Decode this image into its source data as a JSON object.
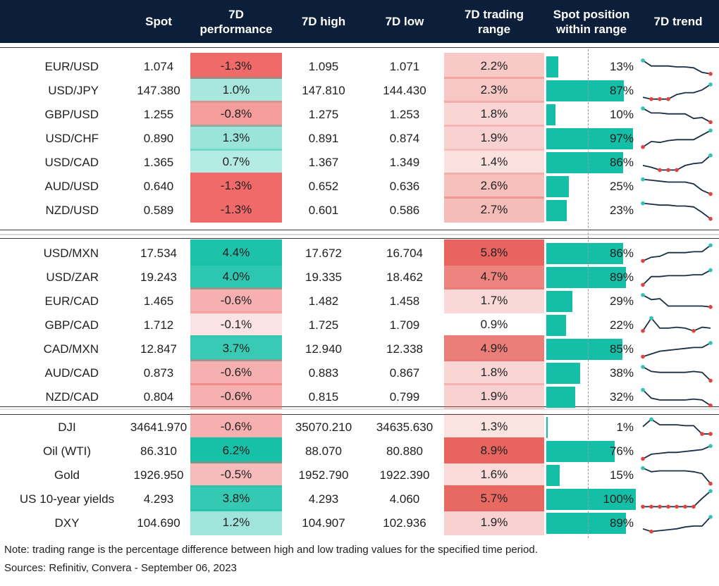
{
  "header": {
    "columns": [
      "",
      "Spot",
      "7D\nperformance",
      "7D high",
      "7D low",
      "7D trading\nrange",
      "Spot position\nwithin range",
      "7D trend"
    ]
  },
  "colors": {
    "header_bg": "#0b1f3a",
    "bar": "#15bfa7",
    "positive": "#17c1a8",
    "negative": "#f06a6a",
    "range": "#e8655f"
  },
  "chart_data": {
    "type": "table",
    "columns": [
      "Spot",
      "7D performance",
      "7D high",
      "7D low",
      "7D trading range",
      "Spot position within range",
      "7D trend"
    ],
    "sections": [
      {
        "rows": [
          {
            "name": "EUR/USD",
            "spot": "1.074",
            "perf": "-1.3%",
            "perf_value": -1.3,
            "high": "1.095",
            "low": "1.071",
            "range": "2.2%",
            "range_value": 2.2,
            "position": "13%",
            "position_value": 13,
            "trend": [
              0.85,
              0.55,
              0.55,
              0.55,
              0.5,
              0.5,
              0.45,
              0.2,
              0.12
            ]
          },
          {
            "name": "USD/JPY",
            "spot": "147.380",
            "perf": "1.0%",
            "perf_value": 1.0,
            "high": "147.810",
            "low": "144.430",
            "range": "2.3%",
            "range_value": 2.3,
            "position": "87%",
            "position_value": 87,
            "trend": [
              0.15,
              0.05,
              0.05,
              0.05,
              0.3,
              0.4,
              0.4,
              0.55,
              0.85
            ]
          },
          {
            "name": "GBP/USD",
            "spot": "1.255",
            "perf": "-0.8%",
            "perf_value": -0.8,
            "high": "1.275",
            "low": "1.253",
            "range": "1.8%",
            "range_value": 1.8,
            "position": "10%",
            "position_value": 10,
            "trend": [
              0.85,
              0.6,
              0.6,
              0.55,
              0.55,
              0.55,
              0.3,
              0.35,
              0.1
            ]
          },
          {
            "name": "USD/CHF",
            "spot": "0.890",
            "perf": "1.3%",
            "perf_value": 1.3,
            "high": "0.891",
            "low": "0.874",
            "range": "1.9%",
            "range_value": 1.9,
            "position": "97%",
            "position_value": 97,
            "trend": [
              0.05,
              0.35,
              0.3,
              0.4,
              0.45,
              0.45,
              0.45,
              0.7,
              0.95
            ]
          },
          {
            "name": "USD/CAD",
            "spot": "1.365",
            "perf": "0.7%",
            "perf_value": 0.7,
            "high": "1.367",
            "low": "1.349",
            "range": "1.4%",
            "range_value": 1.4,
            "position": "86%",
            "position_value": 86,
            "trend": [
              0.35,
              0.25,
              0.1,
              0.1,
              0.1,
              0.35,
              0.45,
              0.5,
              0.9
            ]
          },
          {
            "name": "AUD/USD",
            "spot": "0.640",
            "perf": "-1.3%",
            "perf_value": -1.3,
            "high": "0.652",
            "low": "0.636",
            "range": "2.6%",
            "range_value": 2.6,
            "position": "25%",
            "position_value": 25,
            "trend": [
              0.9,
              0.85,
              0.8,
              0.75,
              0.75,
              0.75,
              0.65,
              0.3,
              0.1
            ]
          },
          {
            "name": "NZD/USD",
            "spot": "0.589",
            "perf": "-1.3%",
            "perf_value": -1.3,
            "high": "0.601",
            "low": "0.586",
            "range": "2.7%",
            "range_value": 2.7,
            "position": "23%",
            "position_value": 23,
            "trend": [
              0.9,
              0.85,
              0.8,
              0.8,
              0.75,
              0.75,
              0.7,
              0.4,
              0.05
            ]
          }
        ]
      },
      {
        "rows": [
          {
            "name": "USD/MXN",
            "spot": "17.534",
            "perf": "4.4%",
            "perf_value": 4.4,
            "high": "17.672",
            "low": "16.704",
            "range": "5.8%",
            "range_value": 5.8,
            "position": "86%",
            "position_value": 86,
            "trend": [
              0.1,
              0.3,
              0.35,
              0.55,
              0.55,
              0.55,
              0.6,
              0.6,
              0.95
            ]
          },
          {
            "name": "USD/ZAR",
            "spot": "19.243",
            "perf": "4.0%",
            "perf_value": 4.0,
            "high": "19.335",
            "low": "18.462",
            "range": "4.7%",
            "range_value": 4.7,
            "position": "89%",
            "position_value": 89,
            "trend": [
              0.1,
              0.55,
              0.55,
              0.6,
              0.6,
              0.6,
              0.65,
              0.65,
              0.9
            ]
          },
          {
            "name": "EUR/CAD",
            "spot": "1.465",
            "perf": "-0.6%",
            "perf_value": -0.6,
            "high": "1.482",
            "low": "1.458",
            "range": "1.7%",
            "range_value": 1.7,
            "position": "29%",
            "position_value": 29,
            "trend": [
              0.85,
              0.6,
              0.65,
              0.25,
              0.25,
              0.25,
              0.25,
              0.25,
              0.2
            ]
          },
          {
            "name": "GBP/CAD",
            "spot": "1.712",
            "perf": "-0.1%",
            "perf_value": -0.1,
            "high": "1.725",
            "low": "1.709",
            "range": "0.9%",
            "range_value": 0.9,
            "position": "22%",
            "position_value": 22,
            "trend": [
              0.2,
              0.9,
              0.35,
              0.35,
              0.4,
              0.35,
              0.2,
              0.4,
              0.35
            ]
          },
          {
            "name": "CAD/MXN",
            "spot": "12.847",
            "perf": "3.7%",
            "perf_value": 3.7,
            "high": "12.940",
            "low": "12.338",
            "range": "4.9%",
            "range_value": 4.9,
            "position": "85%",
            "position_value": 85,
            "trend": [
              0.1,
              0.25,
              0.4,
              0.45,
              0.5,
              0.55,
              0.6,
              0.6,
              0.85
            ]
          },
          {
            "name": "AUD/CAD",
            "spot": "0.873",
            "perf": "-0.6%",
            "perf_value": -0.6,
            "high": "0.883",
            "low": "0.867",
            "range": "1.8%",
            "range_value": 1.8,
            "position": "38%",
            "position_value": 38,
            "trend": [
              0.85,
              0.6,
              0.55,
              0.55,
              0.55,
              0.55,
              0.6,
              0.55,
              0.1
            ]
          },
          {
            "name": "NZD/CAD",
            "spot": "0.804",
            "perf": "-0.6%",
            "perf_value": -0.6,
            "high": "0.815",
            "low": "0.799",
            "range": "1.9%",
            "range_value": 1.9,
            "position": "32%",
            "position_value": 32,
            "trend": [
              0.9,
              0.45,
              0.35,
              0.35,
              0.35,
              0.35,
              0.4,
              0.35,
              0.05
            ]
          }
        ]
      },
      {
        "rows": [
          {
            "name": "DJI",
            "spot": "34641.970",
            "perf": "-0.6%",
            "perf_value": -0.6,
            "high": "35070.210",
            "low": "34635.630",
            "range": "1.3%",
            "range_value": 1.3,
            "position": "1%",
            "position_value": 1,
            "trend": [
              0.55,
              0.95,
              0.65,
              0.65,
              0.65,
              0.6,
              0.6,
              0.15,
              0.15
            ]
          },
          {
            "name": "Oil (WTI)",
            "spot": "86.310",
            "perf": "6.2%",
            "perf_value": 6.2,
            "high": "88.070",
            "low": "80.880",
            "range": "8.9%",
            "range_value": 8.9,
            "position": "76%",
            "position_value": 76,
            "trend": [
              0.1,
              0.35,
              0.4,
              0.45,
              0.45,
              0.5,
              0.55,
              0.6,
              0.8
            ]
          },
          {
            "name": "Gold",
            "spot": "1926.950",
            "perf": "-0.5%",
            "perf_value": -0.5,
            "high": "1952.790",
            "low": "1922.390",
            "range": "1.6%",
            "range_value": 1.6,
            "position": "15%",
            "position_value": 15,
            "trend": [
              0.9,
              0.7,
              0.75,
              0.75,
              0.75,
              0.75,
              0.7,
              0.6,
              0.05
            ]
          },
          {
            "name": "US 10-year yields",
            "spot": "4.293",
            "perf": "3.8%",
            "perf_value": 3.8,
            "high": "4.293",
            "low": "4.060",
            "range": "5.7%",
            "range_value": 5.7,
            "position": "100%",
            "position_value": 100,
            "trend": [
              0.1,
              0.1,
              0.1,
              0.1,
              0.1,
              0.1,
              0.1,
              0.55,
              0.95
            ]
          },
          {
            "name": "DXY",
            "spot": "104.690",
            "perf": "1.2%",
            "perf_value": 1.2,
            "high": "104.907",
            "low": "102.936",
            "range": "1.9%",
            "range_value": 1.9,
            "position": "89%",
            "position_value": 89,
            "trend": [
              0.2,
              0.05,
              0.1,
              0.15,
              0.2,
              0.3,
              0.35,
              0.35,
              0.85
            ]
          }
        ]
      }
    ]
  },
  "footer": {
    "note": "Note: trading range is the percentage difference between high and low trading values for the specified time period.",
    "sources": "Sources: Refinitiv, Convera - September 06, 2023"
  }
}
